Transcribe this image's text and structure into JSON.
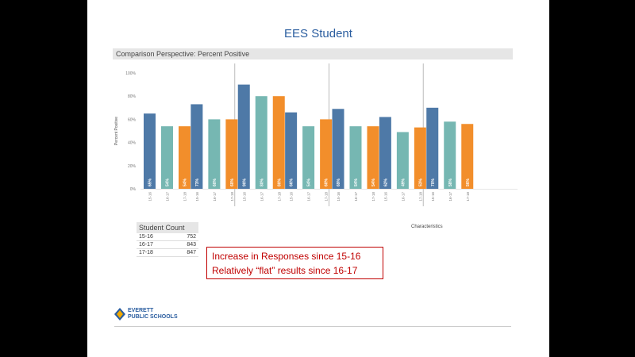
{
  "slide": {
    "title": "EES Student",
    "subtitle": "Comparison Perspective: Percent Positive",
    "callout_line1": "Increase in Responses since 15-16",
    "callout_line2": "Relatively “flat” results since 16-17"
  },
  "student_count": {
    "title": "Student Count",
    "rows": [
      {
        "year": "15-16",
        "count": "752"
      },
      {
        "year": "16-17",
        "count": "843"
      },
      {
        "year": "17-18",
        "count": "847"
      }
    ]
  },
  "characteristics": {
    "title": "Characteristics",
    "items": [
      "",
      "",
      "",
      "",
      "",
      "",
      "",
      "",
      "",
      "",
      ""
    ]
  },
  "logo": {
    "line1": "EVERETT",
    "line2": "PUBLIC SCHOOLS"
  },
  "footer": {
    "left": "",
    "right": ""
  },
  "chart_data": {
    "type": "bar",
    "ylabel": "Percent Positive",
    "ylim": [
      0,
      100
    ],
    "yticks": [
      {
        "value": 0,
        "label": "0%"
      },
      {
        "value": 20,
        "label": "20%"
      },
      {
        "value": 40,
        "label": "40%"
      },
      {
        "value": 60,
        "label": "60%"
      },
      {
        "value": 80,
        "label": "80%"
      },
      {
        "value": 100,
        "label": "100%"
      }
    ],
    "groups": [
      {
        "label": "",
        "bars": [
          {
            "year": "15-16",
            "value": 65,
            "label": "65%"
          },
          {
            "year": "16-17",
            "value": 54,
            "label": "54%"
          },
          {
            "year": "17-18",
            "value": 54,
            "label": "54%"
          }
        ]
      },
      {
        "label": "",
        "bars": [
          {
            "year": "15-16",
            "value": 73,
            "label": "73%"
          },
          {
            "year": "16-17",
            "value": 60,
            "label": "60%"
          },
          {
            "year": "17-18",
            "value": 60,
            "label": "60%"
          }
        ]
      },
      {
        "label": "",
        "bars": [
          {
            "year": "15-16",
            "value": 90,
            "label": "90%"
          },
          {
            "year": "16-17",
            "value": 80,
            "label": "80%"
          },
          {
            "year": "17-18",
            "value": 80,
            "label": "80%"
          }
        ]
      },
      {
        "label": "",
        "bars": [
          {
            "year": "15-16",
            "value": 66,
            "label": "66%"
          },
          {
            "year": "16-17",
            "value": 54,
            "label": "54%"
          },
          {
            "year": "17-18",
            "value": 60,
            "label": "60%"
          }
        ]
      },
      {
        "label": "",
        "bars": [
          {
            "year": "15-16",
            "value": 69,
            "label": "69%"
          },
          {
            "year": "16-17",
            "value": 54,
            "label": "54%"
          },
          {
            "year": "17-18",
            "value": 54,
            "label": "54%"
          }
        ]
      },
      {
        "label": "",
        "bars": [
          {
            "year": "15-16",
            "value": 62,
            "label": "62%"
          },
          {
            "year": "16-17",
            "value": 49,
            "label": "49%"
          },
          {
            "year": "17-18",
            "value": 53,
            "label": "53%"
          }
        ]
      },
      {
        "label": "",
        "bars": [
          {
            "year": "15-16",
            "value": 70,
            "label": "70%"
          },
          {
            "year": "16-17",
            "value": 58,
            "label": "58%"
          },
          {
            "year": "17-18",
            "value": 56,
            "label": "56%"
          }
        ]
      }
    ],
    "colors": {
      "15-16": "#4e79a7",
      "16-17": "#76b7b2",
      "17-18": "#f28e2b"
    },
    "grid": false
  }
}
